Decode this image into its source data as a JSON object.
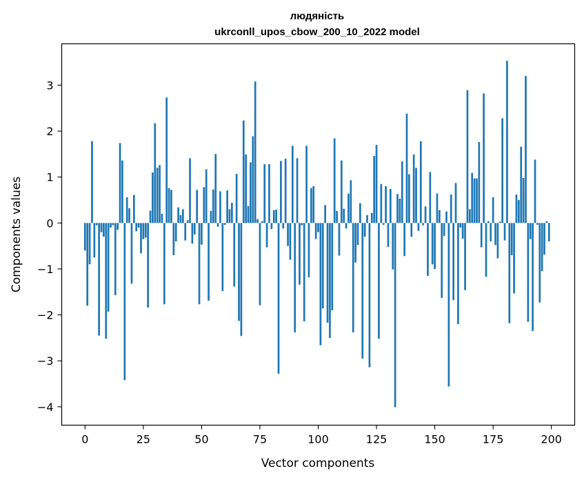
{
  "chart_data": {
    "type": "bar",
    "title": "людяність",
    "subtitle": "ukrconll_upos_cbow_200_10_2022 model",
    "xlabel": "Vector components",
    "ylabel": "Components values",
    "xlim": [
      -10,
      210
    ],
    "ylim": [
      -4.4,
      3.9
    ],
    "xticks": [
      0,
      25,
      50,
      75,
      100,
      125,
      150,
      175,
      200
    ],
    "yticks": [
      -4,
      -3,
      -2,
      -1,
      0,
      1,
      2,
      3
    ],
    "grid": false,
    "x": [
      0,
      1,
      2,
      3,
      4,
      5,
      6,
      7,
      8,
      9,
      10,
      11,
      12,
      13,
      14,
      15,
      16,
      17,
      18,
      19,
      20,
      21,
      22,
      23,
      24,
      25,
      26,
      27,
      28,
      29,
      30,
      31,
      32,
      33,
      34,
      35,
      36,
      37,
      38,
      39,
      40,
      41,
      42,
      43,
      44,
      45,
      46,
      47,
      48,
      49,
      50,
      51,
      52,
      53,
      54,
      55,
      56,
      57,
      58,
      59,
      60,
      61,
      62,
      63,
      64,
      65,
      66,
      67,
      68,
      69,
      70,
      71,
      72,
      73,
      74,
      75,
      76,
      77,
      78,
      79,
      80,
      81,
      82,
      83,
      84,
      85,
      86,
      87,
      88,
      89,
      90,
      91,
      92,
      93,
      94,
      95,
      96,
      97,
      98,
      99,
      100,
      101,
      102,
      103,
      104,
      105,
      106,
      107,
      108,
      109,
      110,
      111,
      112,
      113,
      114,
      115,
      116,
      117,
      118,
      119,
      120,
      121,
      122,
      123,
      124,
      125,
      126,
      127,
      128,
      129,
      130,
      131,
      132,
      133,
      134,
      135,
      136,
      137,
      138,
      139,
      140,
      141,
      142,
      143,
      144,
      145,
      146,
      147,
      148,
      149,
      150,
      151,
      152,
      153,
      154,
      155,
      156,
      157,
      158,
      159,
      160,
      161,
      162,
      163,
      164,
      165,
      166,
      167,
      168,
      169,
      170,
      171,
      172,
      173,
      174,
      175,
      176,
      177,
      178,
      179,
      180,
      181,
      182,
      183,
      184,
      185,
      186,
      187,
      188,
      189,
      190,
      191,
      192,
      193,
      194,
      195,
      196,
      197,
      198,
      199
    ],
    "values": [
      -0.6,
      -1.8,
      -0.9,
      1.78,
      -0.75,
      -0.05,
      -2.45,
      -0.2,
      -0.3,
      -2.52,
      -1.93,
      -0.1,
      -0.05,
      -1.57,
      -0.15,
      1.74,
      1.36,
      -3.42,
      0.56,
      0.32,
      -1.32,
      0.61,
      -0.18,
      -0.1,
      -0.66,
      -0.35,
      -0.32,
      -1.84,
      0.27,
      1.1,
      2.17,
      1.2,
      1.26,
      0.2,
      -1.77,
      2.73,
      0.76,
      0.72,
      -0.7,
      -0.4,
      0.34,
      0.17,
      0.3,
      -0.38,
      0.06,
      1.41,
      -0.45,
      -0.25,
      0.72,
      -1.77,
      -0.47,
      0.78,
      1.17,
      -1.69,
      0.26,
      0.73,
      1.5,
      -0.08,
      0.69,
      -1.48,
      -0.04,
      0.71,
      0.3,
      0.44,
      -1.38,
      1.07,
      -2.13,
      -2.46,
      2.23,
      1.49,
      0.37,
      1.32,
      1.89,
      3.08,
      0.08,
      -1.79,
      0.04,
      1.28,
      -0.53,
      1.28,
      -0.13,
      0.28,
      0.29,
      -3.28,
      1.35,
      -0.12,
      1.4,
      -0.5,
      -0.8,
      1.68,
      -2.38,
      1.41,
      -1.34,
      -0.05,
      -2.14,
      1.68,
      -1.18,
      0.76,
      0.8,
      -0.35,
      -0.2,
      -2.66,
      -1.86,
      0.39,
      -2.17,
      -2.5,
      -1.9,
      1.84,
      0.26,
      -0.71,
      1.36,
      0.31,
      -0.12,
      0.64,
      0.93,
      -2.38,
      -0.86,
      -0.48,
      0.43,
      -2.95,
      -0.3,
      0.17,
      -3.14,
      0.22,
      1.46,
      1.7,
      -2.52,
      0.85,
      -0.04,
      0.8,
      -0.52,
      0.74,
      -1.01,
      -4.01,
      0.63,
      0.53,
      1.34,
      -0.72,
      2.38,
      1.06,
      -0.3,
      1.49,
      1.2,
      -0.17,
      1.78,
      -0.05,
      0.36,
      -1.15,
      1.11,
      -0.9,
      -1.0,
      0.64,
      0.28,
      -1.63,
      -0.28,
      0.25,
      -3.56,
      0.62,
      -1.68,
      0.87,
      -2.2,
      -0.1,
      -0.34,
      -1.46,
      2.89,
      0.3,
      1.09,
      0.97,
      0.97,
      1.76,
      -0.53,
      2.82,
      -1.17,
      0.04,
      -0.4,
      0.56,
      -0.48,
      -0.77,
      0.03,
      2.28,
      -0.38,
      3.53,
      -2.18,
      -0.7,
      -1.53,
      0.62,
      0.5,
      1.66,
      0.98,
      3.2,
      -2.15,
      -0.35,
      -2.35,
      1.38,
      -0.04,
      -1.73,
      -1.05,
      -0.69,
      0.04,
      -0.4
    ]
  }
}
